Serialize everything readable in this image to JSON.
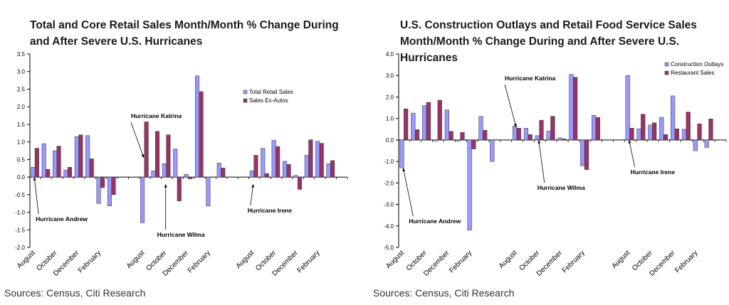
{
  "colors": {
    "series1": "#9999ff",
    "series2": "#993366",
    "axis": "#000000"
  },
  "charts": {
    "left": {
      "title_line1": "Total and Core Retail Sales Month/Month % Change During",
      "title_line2": "and After Severe U.S. Hurricanes",
      "source": "Sources: Census, Citi Research",
      "chart_data": {
        "type": "bar",
        "ylim": [
          -2.0,
          3.5
        ],
        "yticks": [
          "3.5",
          "3.0",
          "2.5",
          "2.0",
          "1.5",
          "1.0",
          "0.5",
          "0.0",
          "-0.5",
          "-1.0",
          "-1.5",
          "-2.0"
        ],
        "x_labels": [
          {
            "label": "August",
            "slot": 0
          },
          {
            "label": "October",
            "slot": 2
          },
          {
            "label": "December",
            "slot": 4
          },
          {
            "label": "February",
            "slot": 6
          },
          {
            "label": "August",
            "slot": 10
          },
          {
            "label": "October",
            "slot": 12
          },
          {
            "label": "December",
            "slot": 14
          },
          {
            "label": "February",
            "slot": 16
          },
          {
            "label": "August",
            "slot": 20
          },
          {
            "label": "October",
            "slot": 22
          },
          {
            "label": "December",
            "slot": 24
          },
          {
            "label": "February",
            "slot": 26
          }
        ],
        "slot_count": 29,
        "series": [
          {
            "name": "Total Retail Sales",
            "values": [
              0.28,
              0.95,
              0.75,
              0.2,
              1.15,
              1.18,
              -0.75,
              -0.82,
              null,
              null,
              -1.3,
              0.18,
              0.38,
              0.8,
              0.08,
              2.88,
              -0.82,
              0.4,
              null,
              null,
              0.18,
              0.82,
              1.05,
              0.45,
              0.05,
              0.62,
              1.02,
              0.38,
              null
            ]
          },
          {
            "name": "Sales Ex-Autos",
            "values": [
              0.82,
              0.22,
              0.88,
              0.28,
              1.2,
              0.52,
              -0.3,
              -0.5,
              null,
              null,
              1.57,
              1.3,
              1.2,
              -0.68,
              -0.05,
              2.43,
              null,
              0.26,
              null,
              null,
              0.62,
              0.1,
              0.87,
              0.36,
              -0.35,
              1.06,
              0.96,
              0.47,
              null
            ]
          }
        ],
        "legend_position": "right",
        "annotations": [
          {
            "text": "Hurricane Andrew",
            "slot": 0,
            "value": 0.0
          },
          {
            "text": "Hurricane Katrina",
            "slot": 10,
            "value": 0.55
          },
          {
            "text": "Hurricane Wilma",
            "slot": 12,
            "value": -0.2
          },
          {
            "text": "Hurricane Irene",
            "slot": 20,
            "value": -0.2
          }
        ]
      }
    },
    "right": {
      "title_line1": "U.S. Construction Outlays and Retail Food Service Sales",
      "title_line2": "Month/Month % Change During and After Severe U.S. Hurricanes",
      "source": "Sources: Census, Citi Research",
      "chart_data": {
        "type": "bar",
        "ylim": [
          -5.0,
          4.0
        ],
        "yticks": [
          "4.0",
          "3.0",
          "2.0",
          "1.0",
          "0.0",
          "-1.0",
          "-2.0",
          "-3.0",
          "-4.0",
          "-5.0"
        ],
        "x_labels": [
          {
            "label": "August",
            "slot": 0
          },
          {
            "label": "October",
            "slot": 2
          },
          {
            "label": "December",
            "slot": 4
          },
          {
            "label": "February",
            "slot": 6
          },
          {
            "label": "August",
            "slot": 10
          },
          {
            "label": "October",
            "slot": 12
          },
          {
            "label": "December",
            "slot": 14
          },
          {
            "label": "February",
            "slot": 16
          },
          {
            "label": "August",
            "slot": 20
          },
          {
            "label": "October",
            "slot": 22
          },
          {
            "label": "December",
            "slot": 24
          },
          {
            "label": "February",
            "slot": 26
          }
        ],
        "slot_count": 29,
        "series": [
          {
            "name": "Construction Outlays",
            "values": [
              -1.3,
              1.25,
              1.6,
              -0.05,
              1.4,
              -0.05,
              -4.2,
              1.1,
              -1.0,
              null,
              0.65,
              0.55,
              0.2,
              0.42,
              0.1,
              3.05,
              -1.2,
              1.15,
              null,
              null,
              3.0,
              0.52,
              0.7,
              1.05,
              2.05,
              0.5,
              -0.5,
              -0.35,
              null
            ]
          },
          {
            "name": "Restaurant Sales",
            "values": [
              1.45,
              0.48,
              1.75,
              1.85,
              0.4,
              0.35,
              -0.42,
              0.45,
              null,
              null,
              0.55,
              0.25,
              0.92,
              1.1,
              0.05,
              2.92,
              -1.38,
              1.05,
              null,
              null,
              0.55,
              1.2,
              0.8,
              0.25,
              0.52,
              1.3,
              0.75,
              0.98,
              null
            ]
          }
        ],
        "legend_position": "top-right",
        "annotations": [
          {
            "text": "Hurricane Andrew",
            "slot": 0,
            "value": -1.3
          },
          {
            "text": "Hurricane Katrina",
            "slot": 10,
            "value": 0.6
          },
          {
            "text": "Hurricane Wilma",
            "slot": 12,
            "value": 0.0
          },
          {
            "text": "Hurricane Irene",
            "slot": 20,
            "value": 0.0
          }
        ]
      }
    }
  }
}
